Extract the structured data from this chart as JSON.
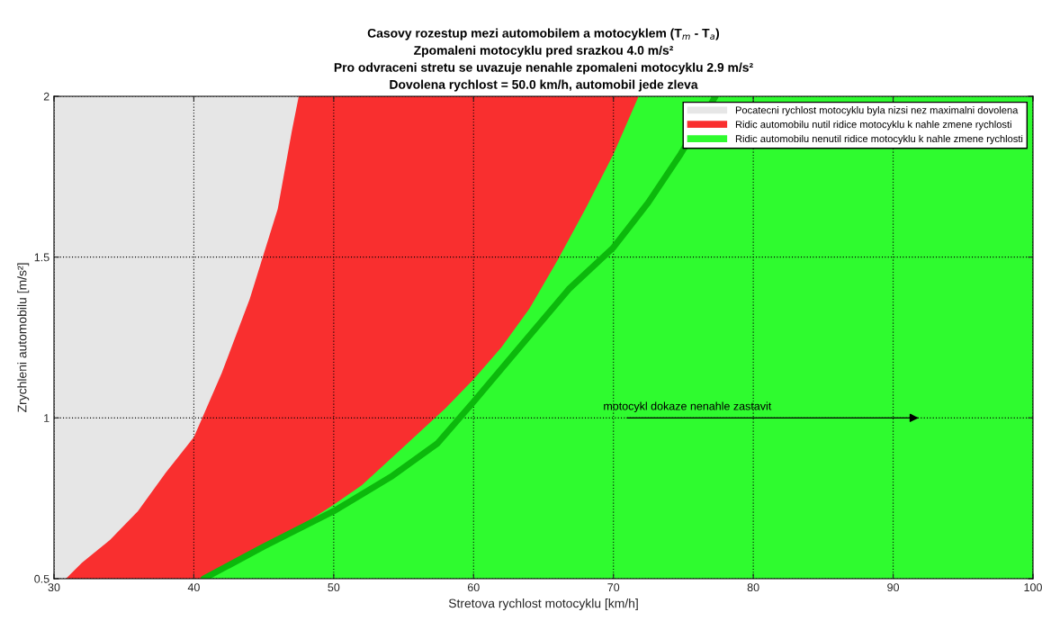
{
  "chart_data": {
    "type": "area",
    "title": "Casovy rozestup mezi automobilem a motocyklem (T$_{m}$ - T$_{a}$)\nZpomaleni motocyklu pred srazkou 4.0 m/s²\nPro odvraceni stretu se uvazuje nenahle zpomaleni motocyklu 2.9 m/s²\nDovolena rychlost = 50.0 km/h, automobil jede zleva",
    "xlabel": "Stretova rychlost motocyklu [km/h]",
    "ylabel": "Zrychleni automobilu [m/s²]",
    "series": [
      {
        "name": "Pocatecni rychlost motocyklu byla nizsi nez maximalni dovolena",
        "color": "#e6e6e6",
        "x": [
          30,
          47.5
        ],
        "values": [
          2,
          2
        ]
      },
      {
        "name": "Ridic automobilu nutil ridice motocyklu k nahle zmene rychlosti",
        "color": "#f92f2f",
        "x": [
          30.85,
          32,
          34,
          36,
          38,
          40,
          40.5,
          42,
          44,
          45,
          46,
          47,
          47.5,
          50,
          55,
          60,
          65,
          71.8
        ],
        "values": [
          0.5,
          0.55,
          0.62,
          0.71,
          0.83,
          0.94,
          0.99,
          1.14,
          1.37,
          1.51,
          1.65,
          1.89,
          2,
          2,
          2,
          2,
          2,
          2
        ]
      },
      {
        "name": "Ridic automobilu nenutil ridice motocyklu k nahle zmene rychlosti",
        "color": "#2ffb2f",
        "x": [
          40.5,
          42,
          44,
          45,
          46,
          47,
          47.5,
          50,
          52,
          55,
          58,
          60,
          62,
          64,
          66,
          68,
          70,
          71.8,
          75,
          80,
          90,
          100
        ],
        "values": [
          0.5,
          0.53,
          0.57,
          0.6,
          0.62,
          0.65,
          0.66,
          0.73,
          0.79,
          0.91,
          1.03,
          1.12,
          1.22,
          1.34,
          1.49,
          1.65,
          1.82,
          2,
          2,
          2,
          2,
          2
        ]
      },
      {
        "type": "line",
        "color": "#0cb80c",
        "x": [
          40.7,
          45,
          50,
          54.2,
          57.4,
          60,
          63.3,
          66.8,
          70,
          72.5,
          74.8,
          77.3
        ],
        "values": [
          0.5,
          0.6,
          0.71,
          0.82,
          0.92,
          1.05,
          1.22,
          1.4,
          1.53,
          1.67,
          1.82,
          2.0
        ]
      }
    ],
    "annotations": [
      "motocykl dokaze nenahle zastavit"
    ],
    "xlim": [
      30,
      100
    ],
    "xticks": [
      30,
      40,
      50,
      60,
      70,
      80,
      90,
      100
    ],
    "ylim": [
      0.5,
      2
    ],
    "yticks": [
      0.5,
      1,
      1.5,
      2
    ],
    "grid": true,
    "legend": "top right"
  }
}
